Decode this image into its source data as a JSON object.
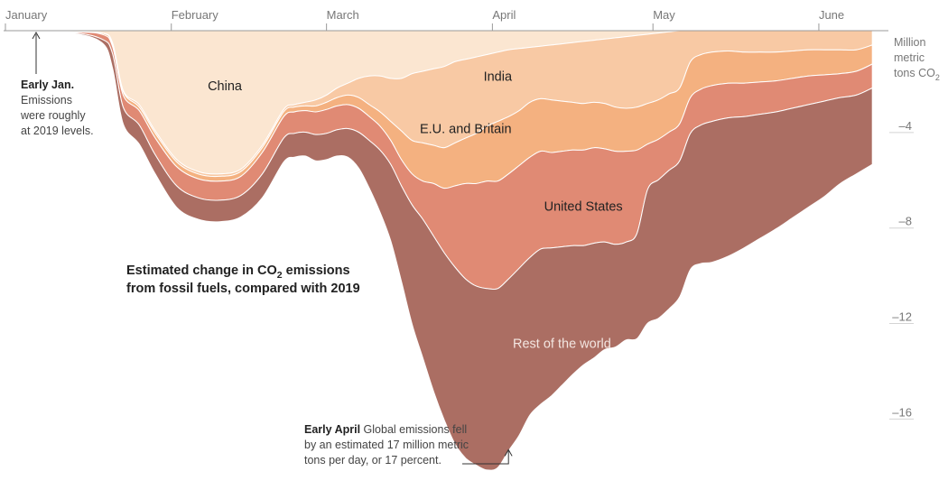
{
  "chart_data": {
    "type": "area",
    "stacked": true,
    "title_line1": "Estimated change in CO",
    "title_sub": "2",
    "title_line1_end": " emissions",
    "title_line2": "from fossil fuels, compared with 2019",
    "unit_lines": [
      "Million",
      "metric",
      "tons CO"
    ],
    "unit_sub": "2",
    "x_axis": {
      "unit": "day of year",
      "range": [
        0,
        165
      ],
      "months": [
        {
          "label": "January",
          "day": 0
        },
        {
          "label": "February",
          "day": 31
        },
        {
          "label": "March",
          "day": 60
        },
        {
          "label": "April",
          "day": 91
        },
        {
          "label": "May",
          "day": 121
        },
        {
          "label": "June",
          "day": 152
        }
      ]
    },
    "y_axis": {
      "range": [
        -19.5,
        0
      ],
      "ticks": [
        {
          "value": -4,
          "label": "–4"
        },
        {
          "value": -8,
          "label": "–8"
        },
        {
          "value": -12,
          "label": "–12"
        },
        {
          "value": -16,
          "label": "–16"
        }
      ]
    },
    "days": [
      0,
      12,
      18,
      20,
      22,
      25,
      28,
      32,
      36,
      40,
      44,
      48,
      52,
      54,
      56,
      58,
      60,
      62,
      64,
      66,
      68,
      70,
      72,
      74,
      76,
      78,
      80,
      82,
      84,
      86,
      88,
      90,
      92,
      94,
      96,
      98,
      100,
      102,
      104,
      106,
      108,
      110,
      112,
      114,
      116,
      118,
      120,
      122,
      124,
      126,
      128,
      130,
      132,
      135,
      138,
      141,
      144,
      147,
      150,
      153,
      156,
      159,
      162
    ],
    "series": [
      {
        "name": "China",
        "color": "#fbe6d1",
        "values": [
          0,
          -0.05,
          -0.1,
          -0.5,
          -2.5,
          -3.1,
          -4.2,
          -5.4,
          -5.9,
          -6.0,
          -5.8,
          -4.8,
          -3.3,
          -3.1,
          -3.0,
          -2.9,
          -2.7,
          -2.4,
          -2.2,
          -2.0,
          -1.9,
          -1.9,
          -2.0,
          -2.0,
          -1.8,
          -1.7,
          -1.6,
          -1.5,
          -1.3,
          -1.2,
          -1.1,
          -1.0,
          -0.9,
          -0.8,
          -0.75,
          -0.7,
          -0.65,
          -0.6,
          -0.55,
          -0.5,
          -0.45,
          -0.4,
          -0.35,
          -0.3,
          -0.25,
          -0.2,
          -0.15,
          -0.1,
          -0.05,
          0,
          0,
          0,
          0,
          0,
          0,
          0,
          0,
          0,
          0,
          0,
          0,
          0,
          0
        ]
      },
      {
        "name": "India",
        "color": "#f8c9a4",
        "values": [
          0,
          0,
          0,
          -0.05,
          -0.05,
          -0.1,
          -0.1,
          -0.1,
          -0.1,
          -0.1,
          -0.1,
          -0.1,
          -0.1,
          -0.1,
          -0.15,
          -0.25,
          -0.3,
          -0.4,
          -0.5,
          -0.8,
          -1.2,
          -1.5,
          -1.8,
          -2.2,
          -2.8,
          -3.0,
          -3.2,
          -3.4,
          -3.4,
          -3.3,
          -3.2,
          -3.0,
          -2.9,
          -2.8,
          -2.6,
          -2.3,
          -2.2,
          -2.3,
          -2.4,
          -2.5,
          -2.6,
          -2.6,
          -2.7,
          -2.9,
          -3.0,
          -3.0,
          -2.9,
          -2.8,
          -2.6,
          -2.4,
          -1.3,
          -1.0,
          -0.9,
          -0.85,
          -0.9,
          -0.9,
          -0.9,
          -0.85,
          -0.8,
          -0.8,
          -0.8,
          -0.8,
          -0.6
        ]
      },
      {
        "name": "E.U. and Britain",
        "color": "#f4b180",
        "values": [
          0,
          0,
          -0.05,
          -0.1,
          -0.15,
          -0.15,
          -0.2,
          -0.2,
          -0.2,
          -0.2,
          -0.2,
          -0.2,
          -0.2,
          -0.2,
          -0.2,
          -0.25,
          -0.3,
          -0.35,
          -0.4,
          -0.45,
          -0.5,
          -0.6,
          -0.8,
          -1.2,
          -1.4,
          -1.6,
          -1.6,
          -1.7,
          -1.8,
          -1.9,
          -2.1,
          -2.3,
          -2.5,
          -2.4,
          -2.3,
          -2.3,
          -2.2,
          -2.2,
          -2.1,
          -2.0,
          -1.95,
          -1.9,
          -1.9,
          -1.85,
          -1.8,
          -1.8,
          -1.7,
          -1.65,
          -1.6,
          -1.5,
          -1.5,
          -1.45,
          -1.4,
          -1.35,
          -1.3,
          -1.25,
          -1.2,
          -1.15,
          -1.1,
          -1.05,
          -1.0,
          -0.9,
          -0.8
        ]
      },
      {
        "name": "United States",
        "color": "#e08a74",
        "values": [
          0,
          -0.02,
          -0.2,
          -0.3,
          -0.5,
          -0.6,
          -0.7,
          -0.8,
          -0.8,
          -0.8,
          -0.8,
          -0.9,
          -0.9,
          -0.9,
          -0.9,
          -0.95,
          -1.0,
          -1.0,
          -1.0,
          -1.0,
          -1.0,
          -1.0,
          -1.0,
          -1.1,
          -1.3,
          -1.6,
          -2.2,
          -2.7,
          -3.4,
          -4.0,
          -4.3,
          -4.5,
          -4.5,
          -4.4,
          -4.3,
          -4.2,
          -4.1,
          -4.0,
          -4.0,
          -4.0,
          -4.0,
          -4.0,
          -3.9,
          -3.9,
          -3.8,
          -3.5,
          -1.9,
          -1.7,
          -1.6,
          -1.55,
          -1.5,
          -1.5,
          -1.5,
          -1.45,
          -1.4,
          -1.35,
          -1.3,
          -1.25,
          -1.2,
          -1.1,
          -1.0,
          -1.0,
          -1.0
        ]
      },
      {
        "name": "Rest of the world",
        "color": "#ab6e63",
        "values": [
          0,
          -0.03,
          -0.15,
          -0.6,
          -0.7,
          -0.8,
          -0.8,
          -0.9,
          -0.9,
          -0.9,
          -0.9,
          -1.0,
          -1.0,
          -1.0,
          -1.0,
          -1.1,
          -1.1,
          -1.1,
          -1.2,
          -1.5,
          -2.0,
          -2.6,
          -3.2,
          -4.0,
          -5.0,
          -5.8,
          -6.5,
          -7.0,
          -7.4,
          -7.5,
          -7.5,
          -7.6,
          -7.5,
          -7.2,
          -7.0,
          -6.6,
          -6.5,
          -6.2,
          -5.8,
          -5.4,
          -5.0,
          -4.8,
          -4.5,
          -4.3,
          -4.1,
          -4.4,
          -5.6,
          -5.8,
          -5.8,
          -5.7,
          -5.7,
          -5.8,
          -5.9,
          -5.8,
          -5.5,
          -5.2,
          -4.9,
          -4.6,
          -4.3,
          -4.0,
          -3.6,
          -3.3,
          -3.2
        ]
      }
    ],
    "series_labels": [
      {
        "name": "China",
        "text": "China",
        "day": 41,
        "value": -2.3,
        "light": false
      },
      {
        "name": "India",
        "text": "India",
        "day": 92,
        "value": -1.9,
        "light": false
      },
      {
        "name": "E.U. and Britain",
        "text": "E.U. and Britain",
        "day": 86,
        "value": -4.1,
        "light": false
      },
      {
        "name": "United States",
        "text": "United States",
        "day": 108,
        "value": -7.35,
        "light": false
      },
      {
        "name": "Rest of the world",
        "text": "Rest of the world",
        "day": 104,
        "value": -13.1,
        "light": true
      }
    ],
    "annotations": [
      {
        "id": "early-jan",
        "bold": "Early Jan.",
        "lines": [
          "Emissions",
          "were roughly",
          "at 2019 levels."
        ],
        "day": 2,
        "value": 0
      },
      {
        "id": "early-april",
        "bold": "Early April",
        "first_line_rest": " Global emissions fell",
        "lines": [
          "by an estimated 17 million metric",
          "tons per day, or 17 percent."
        ],
        "day": 94,
        "value": -17.4
      }
    ]
  }
}
